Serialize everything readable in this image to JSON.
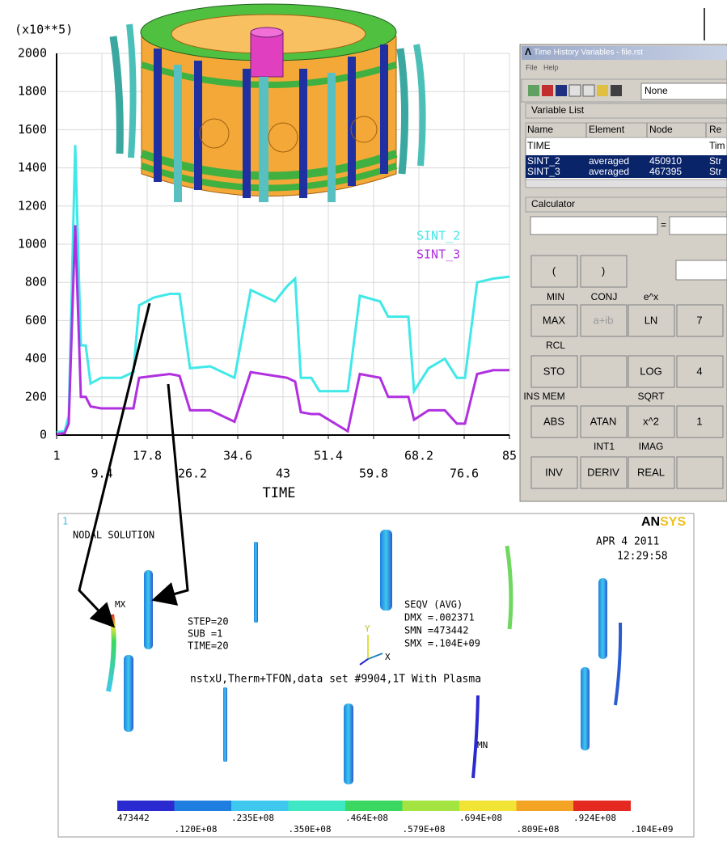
{
  "chart_data": {
    "type": "line",
    "y_unit_label": "(x10**5)",
    "xlabel": "TIME",
    "grid": true,
    "xlim": [
      1,
      85
    ],
    "xticks": [
      1,
      9.4,
      17.8,
      26.2,
      34.6,
      43,
      51.4,
      59.8,
      68.2,
      76.6,
      85
    ],
    "ylim": [
      0,
      2000
    ],
    "yticks": [
      0,
      200,
      400,
      600,
      800,
      1000,
      1200,
      1400,
      1600,
      1800,
      2000
    ],
    "x": [
      1,
      2.5,
      3.25,
      4.45,
      5.5,
      6.4,
      7.3,
      9.25,
      13,
      15.25,
      16.3,
      19,
      22,
      23.8,
      25.75,
      29.5,
      34,
      37,
      41.5,
      43.75,
      45.25,
      46.3,
      48.25,
      49.75,
      55,
      57.25,
      61,
      62.5,
      66.25,
      67.3,
      70,
      73,
      75.25,
      76.75,
      79,
      82,
      85
    ],
    "series": [
      {
        "name": "SINT_2",
        "color": "#40e8e8",
        "values": [
          15,
          20,
          100,
          1520,
          470,
          470,
          270,
          300,
          300,
          330,
          680,
          720,
          740,
          740,
          350,
          360,
          300,
          760,
          700,
          780,
          820,
          300,
          300,
          230,
          230,
          730,
          700,
          620,
          620,
          230,
          350,
          400,
          300,
          300,
          800,
          820,
          830
        ]
      },
      {
        "name": "SINT_3",
        "color": "#b030e0",
        "values": [
          5,
          10,
          60,
          1100,
          200,
          200,
          150,
          140,
          140,
          140,
          300,
          310,
          320,
          310,
          130,
          130,
          70,
          330,
          310,
          300,
          280,
          120,
          110,
          110,
          20,
          320,
          300,
          200,
          200,
          80,
          130,
          130,
          60,
          60,
          320,
          340,
          340
        ]
      }
    ]
  },
  "dialog": {
    "title": "Time History Variables - file.rst",
    "menu": [
      "File",
      "Help"
    ],
    "dropdown": "None",
    "variable_list": "Variable List",
    "columns": [
      "Name",
      "Element",
      "Node",
      "Re"
    ],
    "rows": [
      {
        "name": "TIME",
        "result": "Tim"
      },
      {
        "name": "SINT_2",
        "element": "averaged",
        "node": "450910",
        "result": "Str"
      },
      {
        "name": "SINT_3",
        "element": "averaged",
        "node": "467395",
        "result": "Str"
      }
    ],
    "calculator": {
      "title": "Calculator",
      "equals": "=",
      "buttons": {
        "open": "(",
        "close": ")",
        "max": "MAX",
        "cplx": "a+ib",
        "ln": "LN",
        "seven": "7",
        "sto": "STO",
        "log": "LOG",
        "four": "4",
        "abs": "ABS",
        "atan": "ATAN",
        "sq": "x^2",
        "one": "1",
        "inv": "INV",
        "deriv": "DERIV",
        "real": "REAL"
      },
      "shift_labels": {
        "min": "MIN",
        "conj": "CONJ",
        "exp": "e^x",
        "rcl": "RCL",
        "insmem": "INS MEM",
        "sqrt": "SQRT",
        "int1": "INT1",
        "imag": "IMAG"
      }
    }
  },
  "plot": {
    "window_number": "1",
    "logo_an": "AN",
    "logo_sys": "SYS",
    "label": "NODAL SOLUTION",
    "date": "APR  4 2011",
    "time": "12:29:58",
    "step": [
      "STEP=20",
      "SUB =1",
      "TIME=20"
    ],
    "seqv": [
      "SEQV      (AVG)",
      "DMX =.002371",
      "SMN =473442",
      "SMX =.104E+09"
    ],
    "subtitle": "nstxU,Therm+TFON,data set #9904,1T With Plasma",
    "max_marker": "MX",
    "min_marker": "MN",
    "axis_y": "Y",
    "axis_x": "X",
    "colorbar_colors": [
      "#2a2ad0",
      "#1f7fe0",
      "#3ec8ee",
      "#3ee8c4",
      "#3ad860",
      "#a4e440",
      "#f2e434",
      "#f4a424",
      "#e42a20"
    ],
    "colorbar_labels": [
      "473442",
      ".120E+08",
      ".235E+08",
      ".350E+08",
      ".464E+08",
      ".579E+08",
      ".694E+08",
      ".809E+08",
      ".924E+08",
      ".104E+09"
    ]
  }
}
